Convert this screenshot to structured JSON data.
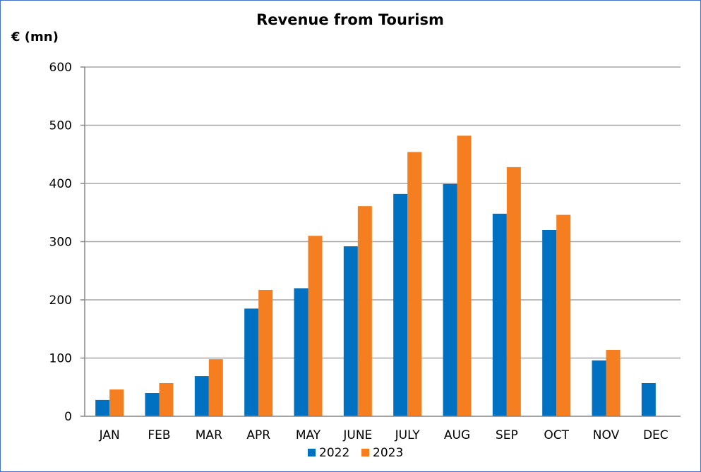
{
  "chart_data": {
    "type": "bar",
    "title": "Revenue from Tourism",
    "ylabel": "€ (mn)",
    "xlabel": "",
    "categories": [
      "JAN",
      "FEB",
      "MAR",
      "APR",
      "MAY",
      "JUNE",
      "JULY",
      "AUG",
      "SEP",
      "OCT",
      "NOV",
      "DEC"
    ],
    "series": [
      {
        "name": "2022",
        "color": "#0070c0",
        "values": [
          28,
          40,
          69,
          185,
          220,
          292,
          382,
          399,
          348,
          320,
          96,
          57
        ]
      },
      {
        "name": "2023",
        "color": "#f47e20",
        "values": [
          46,
          57,
          98,
          217,
          310,
          361,
          454,
          482,
          428,
          346,
          114,
          null
        ]
      }
    ],
    "ylim": [
      0,
      600
    ],
    "yticks": [
      0,
      100,
      200,
      300,
      400,
      500,
      600
    ],
    "grid": true,
    "legend_position": "bottom"
  }
}
